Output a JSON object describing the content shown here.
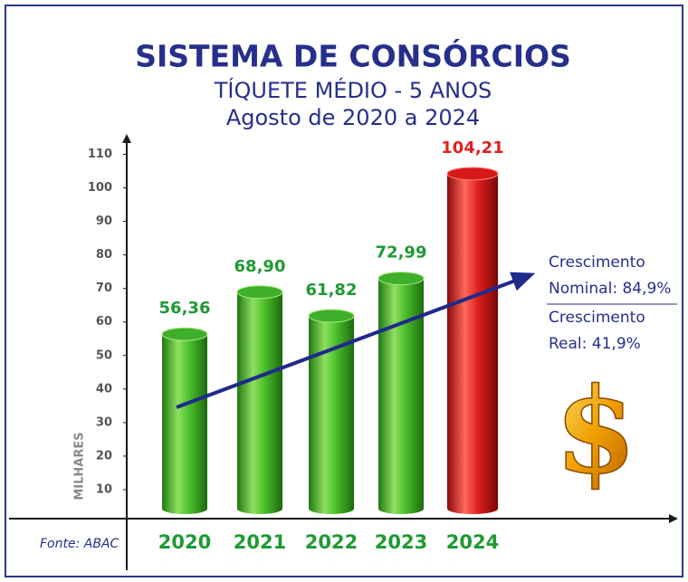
{
  "chart_data": {
    "type": "bar",
    "title": "SISTEMA DE CONSÓRCIOS",
    "subtitle": [
      "TÍQUETE MÉDIO - 5 ANOS",
      "Agosto de 2020 a 2024"
    ],
    "ylabel": "MILHARES",
    "source": "Fonte: ABAC",
    "categories": [
      "2020",
      "2021",
      "2022",
      "2023",
      "2024"
    ],
    "values": [
      56.36,
      68.9,
      61.82,
      72.99,
      104.21
    ],
    "value_labels": [
      "56,36",
      "68,90",
      "61,82",
      "72,99",
      "104,21"
    ],
    "colors": [
      "#3fae2a",
      "#3fae2a",
      "#3fae2a",
      "#3fae2a",
      "#d61a1a"
    ],
    "ylim": [
      0,
      110
    ],
    "yticks": [
      10,
      20,
      30,
      40,
      50,
      60,
      70,
      80,
      90,
      100,
      110
    ],
    "annotations": [
      [
        "Crescimento",
        "Nominal: 84,9%"
      ],
      [
        "Crescimento",
        "Real: 41,9%"
      ]
    ],
    "symbol": "$"
  }
}
